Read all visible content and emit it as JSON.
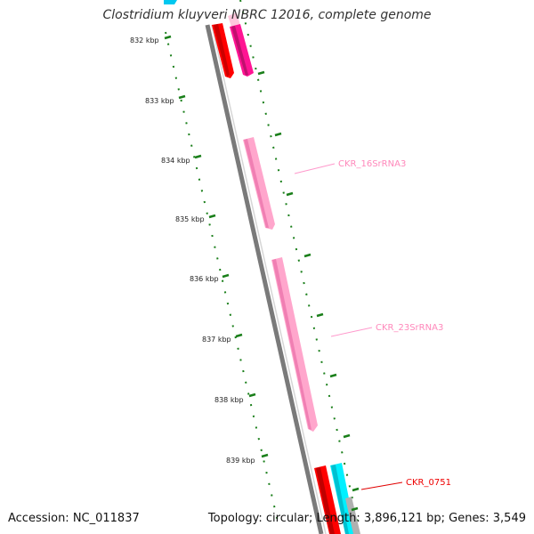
{
  "title": "Clostridium kluyveri NBRC 12016, complete genome",
  "accession_label": "Accession: NC_011837",
  "summary_label": "Topology: circular; Length: 3,896,121 bp; Genes: 3,549",
  "tick_unit": "kbp",
  "ticks": [
    {
      "kbp": 832,
      "label": "832 kbp"
    },
    {
      "kbp": 833,
      "label": "833 kbp"
    },
    {
      "kbp": 834,
      "label": "834 kbp"
    },
    {
      "kbp": 835,
      "label": "835 kbp"
    },
    {
      "kbp": 836,
      "label": "836 kbp"
    },
    {
      "kbp": 837,
      "label": "837 kbp"
    },
    {
      "kbp": 838,
      "label": "838 kbp"
    },
    {
      "kbp": 839,
      "label": "839 kbp"
    }
  ],
  "genes": [
    {
      "name": "CKR_16SrRNA3",
      "label": "CKR_16SrRNA3",
      "type": "rRNA",
      "color": "#ff99cc"
    },
    {
      "name": "CKR_23SrRNA3",
      "label": "CKR_23SrRNA3",
      "type": "rRNA",
      "color": "#ff99cc"
    },
    {
      "name": "CKR_0751",
      "label": "CKR_0751",
      "type": "CDS",
      "color": "#ff0000"
    }
  ],
  "colors": {
    "backbone": "#808080",
    "tick": "#1a7f1a",
    "cds": "#ff0000",
    "trna": "#ff1493",
    "rrna": "#ff99cc",
    "other": "#00e5ff",
    "label_rrna": "#ff88bb",
    "label_cds": "#ee0000"
  }
}
